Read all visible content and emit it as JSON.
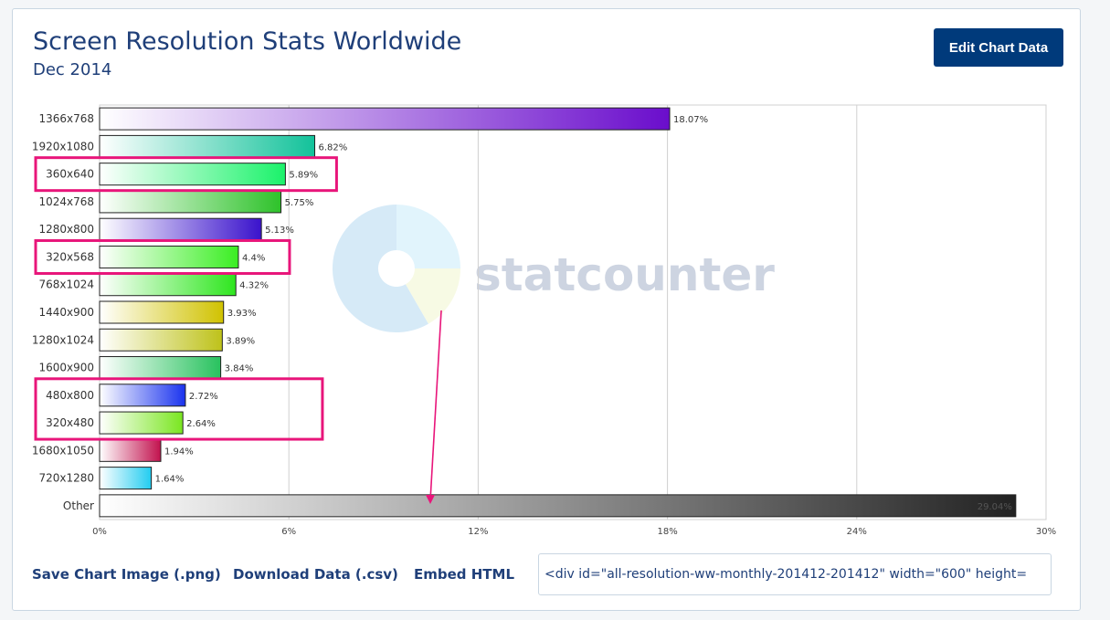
{
  "header": {
    "title": "Screen Resolution Stats Worldwide",
    "subtitle": "Dec 2014",
    "edit_button_label": "Edit Chart Data"
  },
  "footer": {
    "save_image_label": "Save Chart Image (.png)",
    "download_data_label": "Download Data (.csv)",
    "embed_html_label": "Embed HTML",
    "embed_code": "<div id=\"all-resolution-ww-monthly-201412-201412\" width=\"600\" height="
  },
  "watermark": {
    "text": "statcounter"
  },
  "chart_data": {
    "type": "bar",
    "orientation": "horizontal",
    "categories": [
      "1366x768",
      "1920x1080",
      "360x640",
      "1024x768",
      "1280x800",
      "320x568",
      "768x1024",
      "1440x900",
      "1280x1024",
      "1600x900",
      "480x800",
      "320x480",
      "1680x1050",
      "720x1280",
      "Other"
    ],
    "values": [
      18.07,
      6.82,
      5.89,
      5.75,
      5.13,
      4.4,
      4.32,
      3.93,
      3.89,
      3.84,
      2.72,
      2.64,
      1.94,
      1.64,
      29.04
    ],
    "value_labels": [
      "18.07%",
      "6.82%",
      "5.89%",
      "5.75%",
      "5.13%",
      "4.4%",
      "4.32%",
      "3.93%",
      "3.89%",
      "3.84%",
      "2.72%",
      "2.64%",
      "1.94%",
      "1.64%",
      "29.04%"
    ],
    "bar_colors": [
      "#6a0dcc",
      "#12c29a",
      "#1af26a",
      "#2ec22a",
      "#3a12cc",
      "#3aee22",
      "#2ee61e",
      "#d0c200",
      "#bec21a",
      "#28c25e",
      "#1a33ee",
      "#7ae620",
      "#c2124e",
      "#22ccf0",
      "#222222"
    ],
    "xlim": [
      0,
      30
    ],
    "xticks": [
      "0%",
      "6%",
      "12%",
      "18%",
      "24%",
      "30%"
    ],
    "xtick_values": [
      0,
      6,
      12,
      18,
      24,
      30
    ],
    "grid": true,
    "highlighted_categories": [
      [
        "360x640"
      ],
      [
        "320x568"
      ],
      [
        "480x800",
        "320x480"
      ]
    ],
    "highlight_color": "#e8157a"
  }
}
